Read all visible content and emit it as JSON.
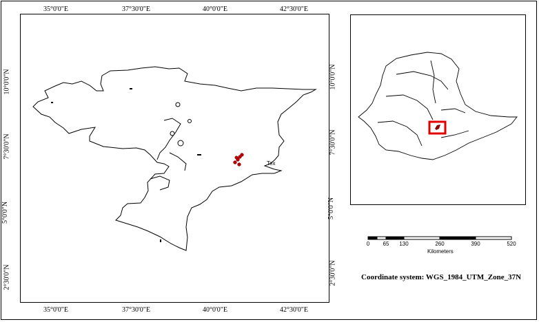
{
  "main_map": {
    "top_ticks": [
      "35°0'0\"E",
      "37°30'0\"E",
      "40°0'0\"E",
      "42°30'0\"E"
    ],
    "bottom_ticks": [
      "35°0'0\"E",
      "37°30'0\"E",
      "40°0'0\"E",
      "42°30'0\"E"
    ],
    "left_ticks": [
      "10°0'0\"N",
      "7°30'0\"N",
      "5°0'0\"N",
      "2°30'0\"N"
    ],
    "right_ticks": [
      "10°0'0\"N",
      "7°30'0\"N",
      "5°0'0\"N",
      "2°30'0\"N"
    ],
    "label": "Tex",
    "study_point_color": "#c00000"
  },
  "inset_map": {
    "highlight_color": "#e00000"
  },
  "scale_bar": {
    "ticks": [
      "0",
      "65",
      "130",
      "260",
      "390",
      "520"
    ],
    "unit": "Kilometers"
  },
  "coordinate_system": "Coordinate system: WGS_1984_UTM_Zone_37N"
}
